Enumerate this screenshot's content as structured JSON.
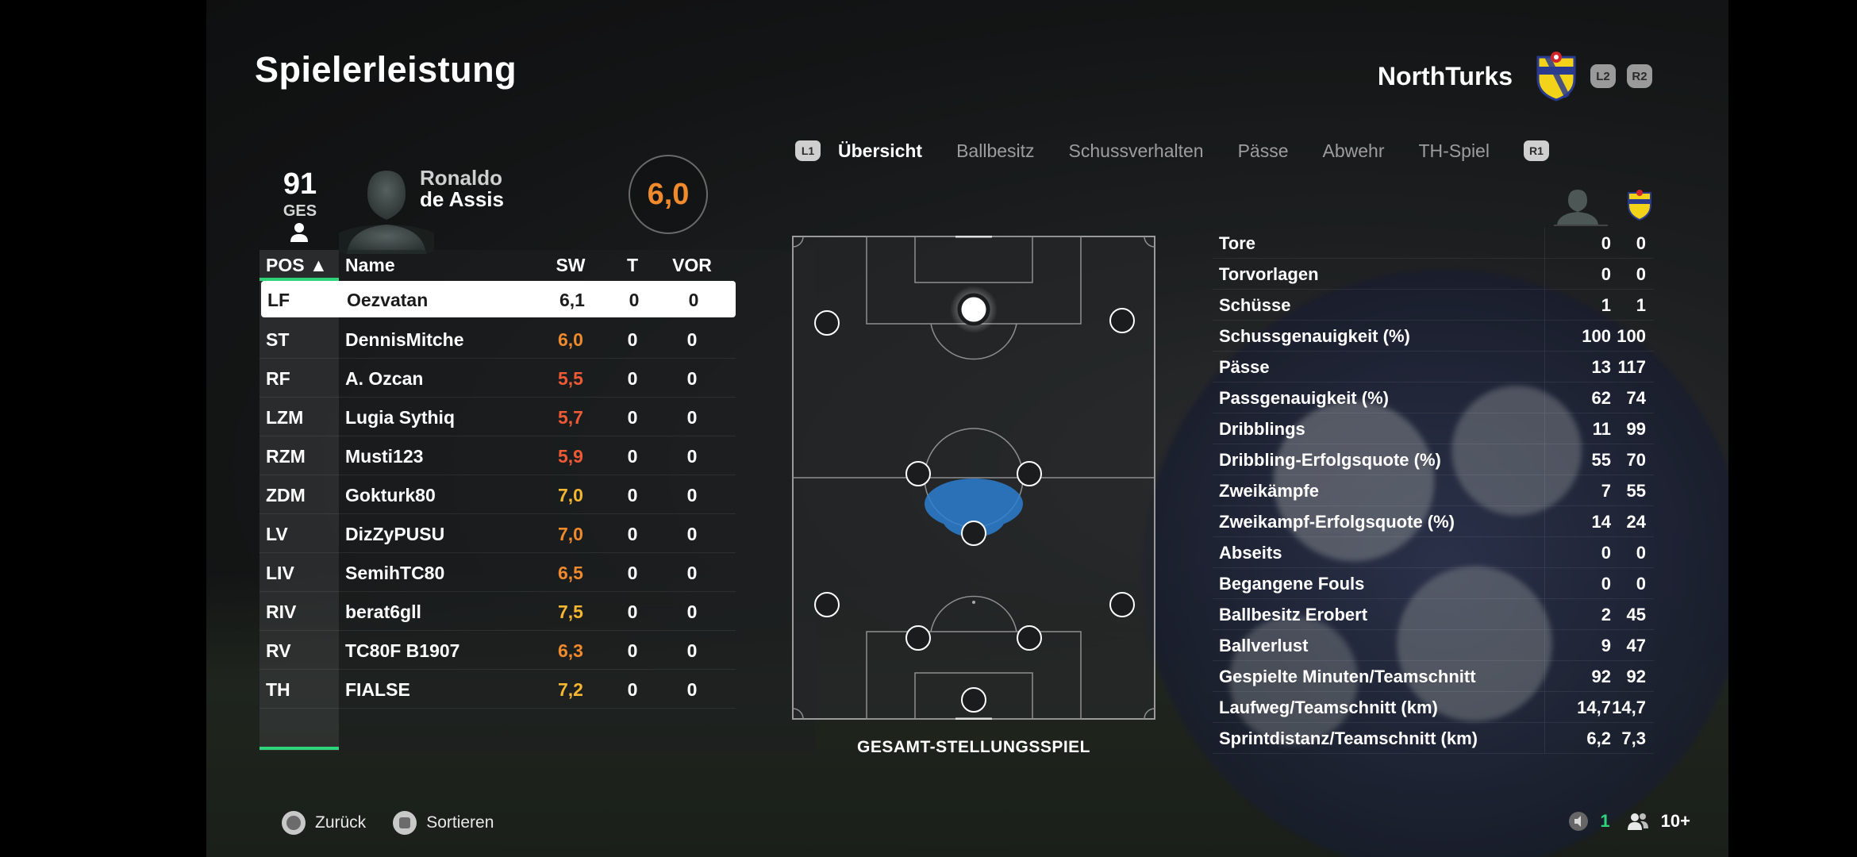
{
  "page": {
    "title": "Spielerleistung"
  },
  "team": {
    "name": "NorthTurks",
    "crest": "club-crest-icon",
    "l2": "L2",
    "r2": "R2"
  },
  "player": {
    "overall": "91",
    "overall_label": "GES",
    "first_name": "Ronaldo",
    "last_name": "de Assis",
    "rating": "6,0"
  },
  "table": {
    "headers": {
      "pos": "POS ▲",
      "name": "Name",
      "sw": "SW",
      "t": "T",
      "vor": "VOR"
    },
    "rows": [
      {
        "pos": "LF",
        "name": "Oezvatan",
        "sw": "6,1",
        "t": "0",
        "vor": "0",
        "color": "#1b1b1b"
      },
      {
        "pos": "ST",
        "name": "DennisMitche",
        "sw": "6,0",
        "t": "0",
        "vor": "0",
        "color": "#f08a2c"
      },
      {
        "pos": "RF",
        "name": "A. Ozcan",
        "sw": "5,5",
        "t": "0",
        "vor": "0",
        "color": "#ef5a36"
      },
      {
        "pos": "LZM",
        "name": "Lugia Sythiq",
        "sw": "5,7",
        "t": "0",
        "vor": "0",
        "color": "#ef5a36"
      },
      {
        "pos": "RZM",
        "name": "Musti123",
        "sw": "5,9",
        "t": "0",
        "vor": "0",
        "color": "#ef5a36"
      },
      {
        "pos": "ZDM",
        "name": "Gokturk80",
        "sw": "7,0",
        "t": "0",
        "vor": "0",
        "color": "#f5b731"
      },
      {
        "pos": "LV",
        "name": "DizZyPUSU",
        "sw": "7,0",
        "t": "0",
        "vor": "0",
        "color": "#f08a2c"
      },
      {
        "pos": "LIV",
        "name": "SemihTC80",
        "sw": "6,5",
        "t": "0",
        "vor": "0",
        "color": "#f08a2c"
      },
      {
        "pos": "RIV",
        "name": "berat6gll",
        "sw": "7,5",
        "t": "0",
        "vor": "0",
        "color": "#f5b731"
      },
      {
        "pos": "RV",
        "name": "TC80F B1907",
        "sw": "6,3",
        "t": "0",
        "vor": "0",
        "color": "#f08a2c"
      },
      {
        "pos": "TH",
        "name": "FIALSE",
        "sw": "7,2",
        "t": "0",
        "vor": "0",
        "color": "#f5b731"
      }
    ]
  },
  "tabs": {
    "l1": "L1",
    "r1": "R1",
    "items": [
      "Übersicht",
      "Ballbesitz",
      "Schussverhalten",
      "Pässe",
      "Abwehr",
      "TH-Spiel"
    ],
    "active": 0
  },
  "pitch": {
    "label": "GESAMT-STELLUNGSSPIEL"
  },
  "stats": [
    {
      "label": "Tore",
      "player": "0",
      "team": "0"
    },
    {
      "label": "Torvorlagen",
      "player": "0",
      "team": "0"
    },
    {
      "label": "Schüsse",
      "player": "1",
      "team": "1"
    },
    {
      "label": "Schussgenauigkeit (%)",
      "player": "100",
      "team": "100"
    },
    {
      "label": "Pässe",
      "player": "13",
      "team": "117"
    },
    {
      "label": "Passgenauigkeit (%)",
      "player": "62",
      "team": "74"
    },
    {
      "label": "Dribblings",
      "player": "11",
      "team": "99"
    },
    {
      "label": "Dribbling-Erfolgsquote (%)",
      "player": "55",
      "team": "70"
    },
    {
      "label": "Zweikämpfe",
      "player": "7",
      "team": "55"
    },
    {
      "label": "Zweikampf-Erfolgsquote (%)",
      "player": "14",
      "team": "24"
    },
    {
      "label": "Abseits",
      "player": "0",
      "team": "0"
    },
    {
      "label": "Begangene Fouls",
      "player": "0",
      "team": "0"
    },
    {
      "label": "Ballbesitz Erobert",
      "player": "2",
      "team": "45"
    },
    {
      "label": "Ballverlust",
      "player": "9",
      "team": "47"
    },
    {
      "label": "Gespielte Minuten/Teamschnitt",
      "player": "92",
      "team": "92"
    },
    {
      "label": "Laufweg/Teamschnitt (km)",
      "player": "14,7",
      "team": "14,7"
    },
    {
      "label": "Sprintdistanz/Teamschnitt (km)",
      "player": "6,2",
      "team": "7,3"
    }
  ],
  "footer": {
    "back": "Zurück",
    "sort": "Sortieren",
    "mic_count": "1",
    "party_count": "10+"
  }
}
